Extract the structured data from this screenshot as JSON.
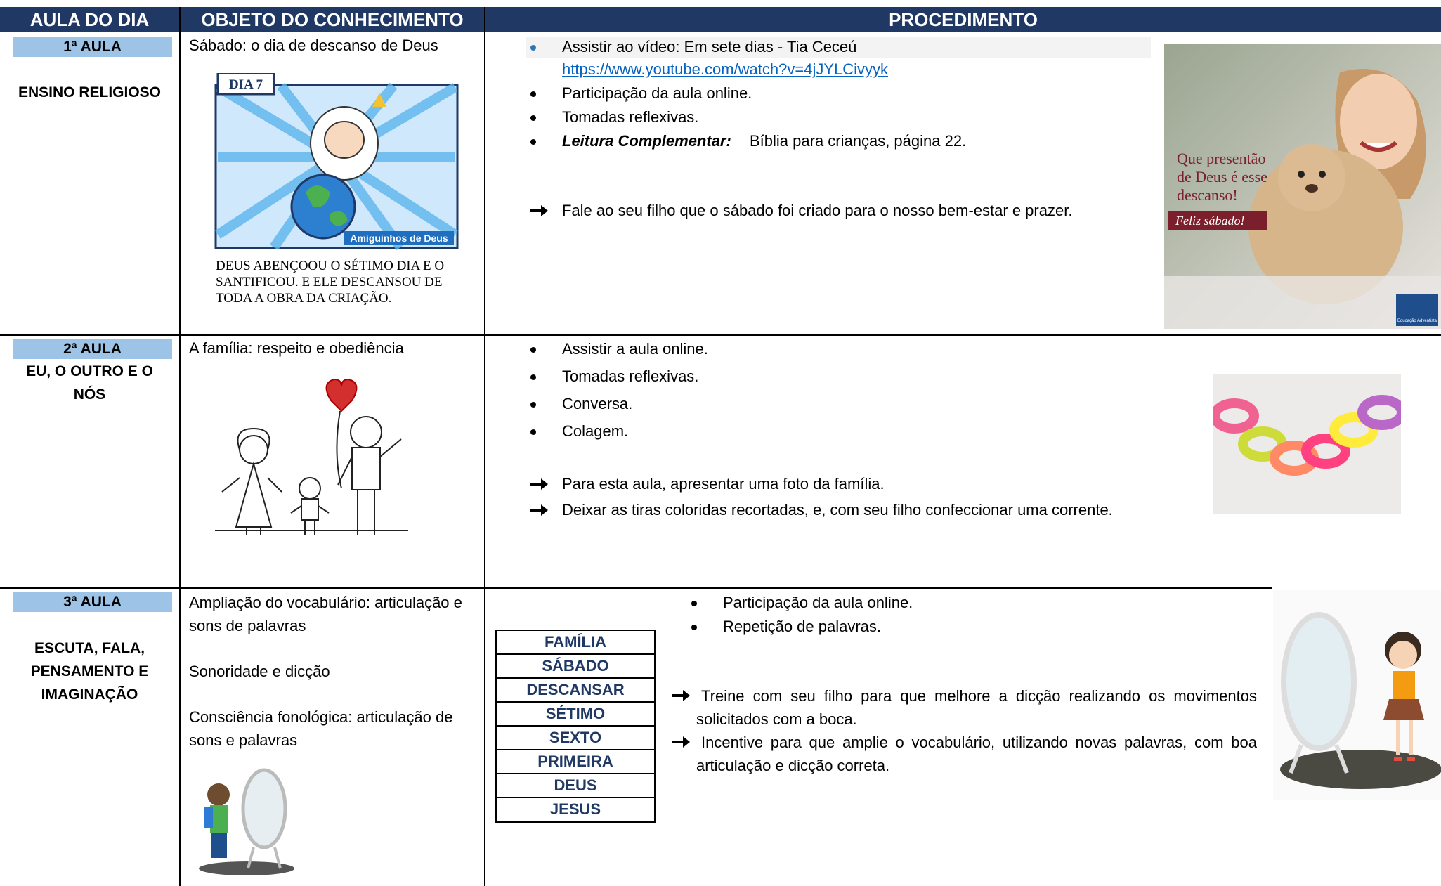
{
  "header": {
    "columns": [
      "AULA DO DIA",
      "OBJETO DO CONHECIMENTO",
      "PROCEDIMENTO"
    ]
  },
  "lessons": [
    {
      "number": "1ª AULA",
      "subject": [
        "ENSINO RELIGIOSO"
      ],
      "objects": [
        "Sábado: o dia de descanso de Deus"
      ],
      "illustration": {
        "label": "DIA 7",
        "brand": "Amiguinhos de Deus",
        "caption": [
          "DEUS ABENÇOOU O SÉTIMO DIA E O",
          "SANTIFICOU. E ELE DESCANSOU DE",
          "TODA A OBRA DA CRIAÇÃO."
        ]
      },
      "video": {
        "text": "Assistir ao vídeo: Em sete dias - Tia Ceceú",
        "link": "https://www.youtube.com/watch?v=4jJYLCivyyk"
      },
      "bullets": [
        "Participação da aula online.",
        "Tomadas reflexivas."
      ],
      "reading": {
        "label": "Leitura Complementar:",
        "text": "Bíblia para crianças, página 22."
      },
      "arrows": [
        "Fale ao seu filho que o sábado foi criado para o nosso bem-estar e prazer."
      ],
      "photo": {
        "lines": [
          "Que presentão",
          "de Deus é esse",
          "descanso!"
        ],
        "banner": "Feliz sábado!",
        "logo": "Educação Adventista"
      }
    },
    {
      "number": "2ª AULA",
      "subject": [
        "EU, O OUTRO E O",
        "NÓS"
      ],
      "objects": [
        "A família: respeito e obediência"
      ],
      "bullets": [
        "Assistir a aula online.",
        "Tomadas reflexivas.",
        "Conversa.",
        "Colagem."
      ],
      "arrows": [
        "Para esta aula, apresentar uma foto da família.",
        "Deixar as tiras coloridas recortadas, e, com seu filho confeccionar uma corrente."
      ]
    },
    {
      "number": "3ª AULA",
      "subject": [
        "ESCUTA, FALA,",
        "PENSAMENTO E",
        "IMAGINAÇÃO"
      ],
      "objects": [
        "Ampliação do vocabulário: articulação e sons de palavras",
        "Sonoridade e dicção",
        "Consciência fonológica: articulação de sons e palavras"
      ],
      "words": [
        "FAMÍLIA",
        "SÁBADO",
        "DESCANSAR",
        "SÉTIMO",
        "SEXTO",
        "PRIMEIRA",
        "DEUS",
        "JESUS"
      ],
      "bullets": [
        "Participação da aula online.",
        "Repetição de palavras."
      ],
      "arrows": [
        "Treine com seu filho para que melhore a dicção realizando os movimentos solicitados com a boca.",
        "Incentive para que amplie o vocabulário, utilizando novas palavras, com boa articulação e dicção correta."
      ]
    }
  ]
}
